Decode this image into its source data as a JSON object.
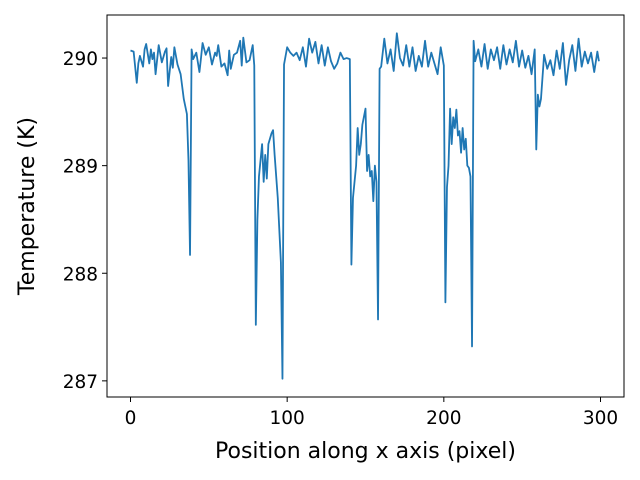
{
  "chart_data": {
    "type": "line",
    "title": "",
    "xlabel": "Position along x axis (pixel)",
    "ylabel": "Temperature (K)",
    "xlim": [
      -15,
      315
    ],
    "ylim": [
      286.85,
      290.4
    ],
    "xticks": [
      0,
      100,
      200,
      300
    ],
    "yticks": [
      287,
      288,
      289,
      290
    ],
    "xtick_labels": [
      "0",
      "100",
      "200",
      "300"
    ],
    "ytick_labels": [
      "287",
      "288",
      "289",
      "290"
    ],
    "grid": false,
    "line_color": "#1f77b4",
    "series": [
      {
        "x": [
          0,
          2,
          4,
          5,
          6,
          8,
          9,
          10,
          12,
          13,
          14,
          15,
          16,
          18,
          20,
          22,
          23,
          24,
          26,
          27,
          28,
          30,
          32,
          34,
          36,
          37,
          38,
          39,
          40,
          42,
          44,
          45,
          46,
          48,
          50,
          52,
          54,
          55,
          56,
          58,
          60,
          62,
          63,
          64,
          66,
          68,
          70,
          71,
          72,
          74,
          76,
          78,
          79,
          80,
          81,
          82,
          84,
          85,
          86,
          87,
          88,
          89,
          90,
          91,
          92,
          94,
          96,
          97,
          98,
          99,
          100,
          102,
          104,
          106,
          108,
          110,
          112,
          114,
          116,
          118,
          120,
          122,
          124,
          126,
          128,
          130,
          132,
          134,
          136,
          138,
          140,
          141,
          142,
          144,
          145,
          146,
          147,
          148,
          150,
          151,
          152,
          153,
          154,
          155,
          156,
          157,
          158,
          159,
          160,
          162,
          164,
          166,
          168,
          170,
          172,
          174,
          176,
          178,
          180,
          182,
          184,
          186,
          188,
          190,
          192,
          194,
          196,
          198,
          200,
          201,
          202,
          203,
          204,
          205,
          206,
          207,
          208,
          209,
          210,
          211,
          212,
          213,
          214,
          215,
          216,
          217,
          218,
          219,
          220,
          222,
          224,
          226,
          228,
          230,
          232,
          234,
          236,
          238,
          240,
          242,
          244,
          246,
          248,
          250,
          252,
          254,
          256,
          258,
          259,
          260,
          261,
          262,
          264,
          266,
          268,
          270,
          272,
          274,
          276,
          278,
          280,
          282,
          284,
          286,
          288,
          290,
          292,
          294,
          296,
          298,
          299
        ],
        "values": [
          290.07,
          290.06,
          289.77,
          289.95,
          290.02,
          289.92,
          290.08,
          290.13,
          289.95,
          290.08,
          289.99,
          290.05,
          289.85,
          290.12,
          289.96,
          290.06,
          290.09,
          289.74,
          290.01,
          289.91,
          290.1,
          289.94,
          289.85,
          289.62,
          289.48,
          289.05,
          288.17,
          290.08,
          289.99,
          290.05,
          289.87,
          290.0,
          290.14,
          290.03,
          290.1,
          289.94,
          290.05,
          290.02,
          290.12,
          289.92,
          289.95,
          289.84,
          290.07,
          289.9,
          290.03,
          290.05,
          290.16,
          289.93,
          290.19,
          289.96,
          289.98,
          290.12,
          289.93,
          287.52,
          288.5,
          288.9,
          289.2,
          288.85,
          289.1,
          288.88,
          289.2,
          289.25,
          289.3,
          289.33,
          289.1,
          288.7,
          288.1,
          287.02,
          289.94,
          290.02,
          290.1,
          290.05,
          290.02,
          290.05,
          289.98,
          290.1,
          289.92,
          290.18,
          290.05,
          290.15,
          289.95,
          290.12,
          289.93,
          290.1,
          289.97,
          289.9,
          289.95,
          290.05,
          289.99,
          290.0,
          289.99,
          288.08,
          288.7,
          289.0,
          289.35,
          289.1,
          289.2,
          289.38,
          289.53,
          288.95,
          289.1,
          288.9,
          288.95,
          288.67,
          289.0,
          288.85,
          287.57,
          289.9,
          289.92,
          290.18,
          289.95,
          290.08,
          289.88,
          290.23,
          290.0,
          289.93,
          290.12,
          289.92,
          290.1,
          289.88,
          290.02,
          289.92,
          290.16,
          289.92,
          290.05,
          289.95,
          289.85,
          290.1,
          289.93,
          287.73,
          288.8,
          289.0,
          289.53,
          289.2,
          289.45,
          289.35,
          289.52,
          289.28,
          289.32,
          289.12,
          289.35,
          289.15,
          289.25,
          289.0,
          288.98,
          288.9,
          287.32,
          290.16,
          289.97,
          290.08,
          289.92,
          290.13,
          289.9,
          290.08,
          289.98,
          290.1,
          289.9,
          290.12,
          289.94,
          290.08,
          289.96,
          290.16,
          289.92,
          290.07,
          289.91,
          290.02,
          289.85,
          290.08,
          289.15,
          289.66,
          289.55,
          289.62,
          290.03,
          289.9,
          289.98,
          289.84,
          290.07,
          289.9,
          290.14,
          289.75,
          289.98,
          290.12,
          289.88,
          290.18,
          289.92,
          290.06,
          289.95,
          290.05,
          289.87,
          290.06,
          289.97
        ]
      }
    ]
  }
}
